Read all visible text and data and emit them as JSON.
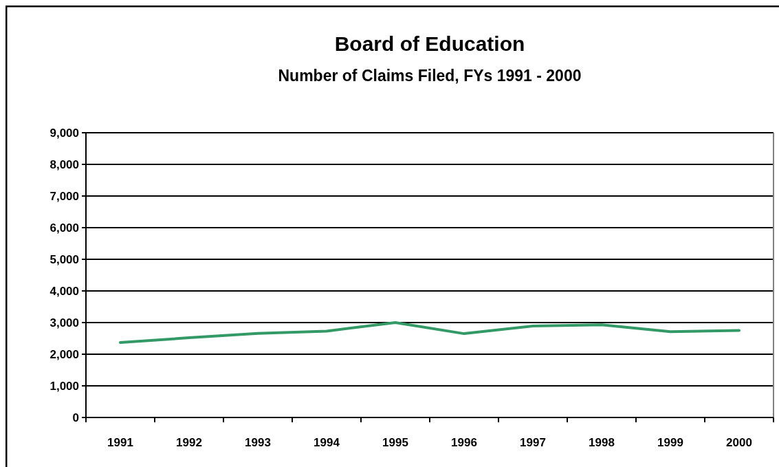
{
  "chart_data": {
    "type": "line",
    "title": "Board of Education",
    "subtitle": "Number of Claims Filed, FYs 1991 - 2000",
    "categories": [
      "1991",
      "1992",
      "1993",
      "1994",
      "1995",
      "1996",
      "1997",
      "1998",
      "1999",
      "2000"
    ],
    "series": [
      {
        "color": "#339966",
        "values": [
          2370,
          2520,
          2660,
          2730,
          3000,
          2650,
          2890,
          2930,
          2710,
          2750
        ]
      }
    ],
    "ylim": [
      0,
      9000
    ],
    "yticks": [
      {
        "value": 0,
        "label": "0"
      },
      {
        "value": 1000,
        "label": "1,000"
      },
      {
        "value": 2000,
        "label": "2,000"
      },
      {
        "value": 3000,
        "label": "3,000"
      },
      {
        "value": 4000,
        "label": "4,000"
      },
      {
        "value": 5000,
        "label": "5,000"
      },
      {
        "value": 6000,
        "label": "6,000"
      },
      {
        "value": 7000,
        "label": "7,000"
      },
      {
        "value": 8000,
        "label": "8,000"
      },
      {
        "value": 9000,
        "label": "9,000"
      }
    ],
    "grid": "y",
    "marker": "none",
    "line_style": "solid"
  }
}
